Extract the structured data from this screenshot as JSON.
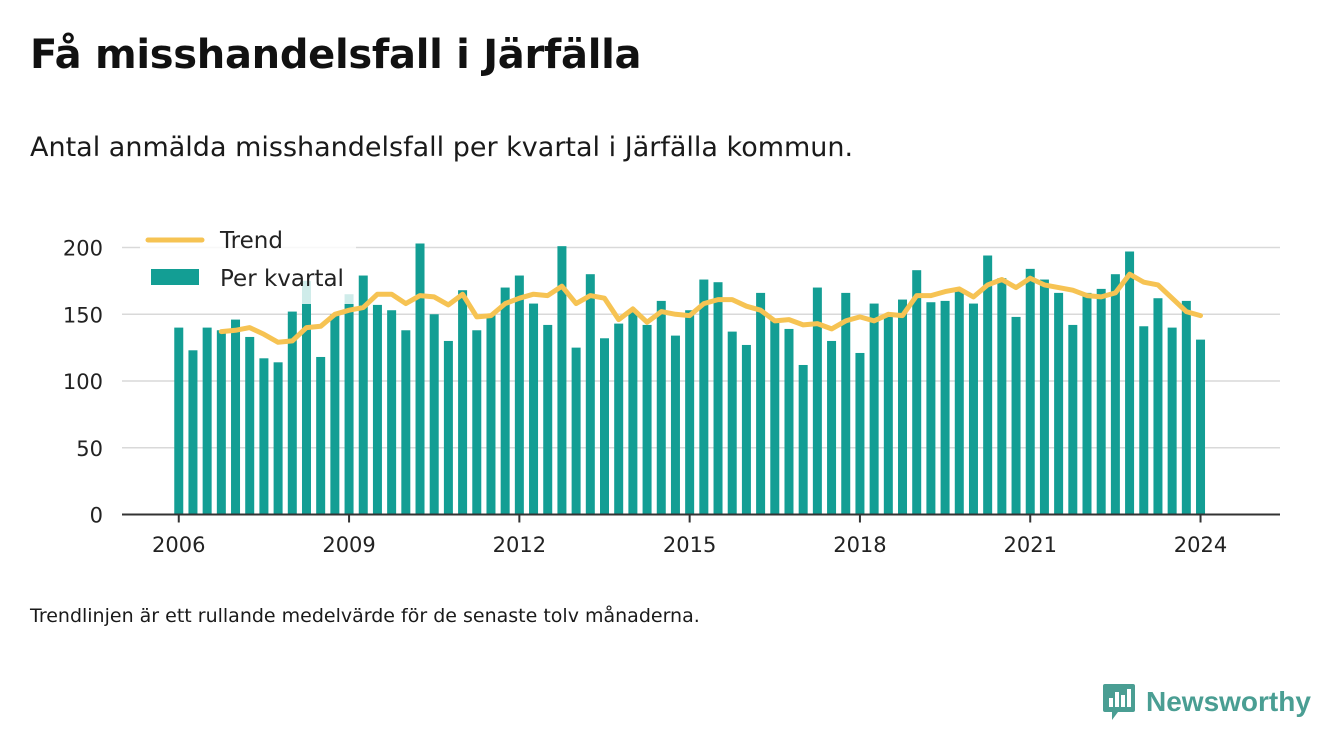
{
  "header": {
    "title": "Få misshandelsfall i Järfälla",
    "subtitle": "Antal anmälda misshandelsfall per kvartal i Järfälla kommun."
  },
  "footer": {
    "note": "Trendlinjen är ett rullande medelvärde för de senaste tolv månaderna.",
    "brand": "Newsworthy"
  },
  "colors": {
    "bar": "#139e94",
    "trend": "#f6c353",
    "grid": "#d9d9d9",
    "brand": "#4a9e93"
  },
  "chart_data": {
    "type": "bar",
    "ylim": [
      0,
      200
    ],
    "y_ticks": [
      0,
      50,
      100,
      150,
      200
    ],
    "x_ticks": [
      "2006",
      "2009",
      "2012",
      "2015",
      "2018",
      "2021",
      "2024"
    ],
    "x_tick_positions": [
      2006,
      2009,
      2012,
      2015,
      2018,
      2021,
      2024
    ],
    "xlim": [
      2005,
      2025.4
    ],
    "grid": true,
    "legend_position": "top-left",
    "series": [
      {
        "name": "Per kvartal",
        "type": "bar",
        "x": [
          2006.0,
          2006.25,
          2006.5,
          2006.75,
          2007.0,
          2007.25,
          2007.5,
          2007.75,
          2008.0,
          2008.25,
          2008.5,
          2008.75,
          2009.0,
          2009.25,
          2009.5,
          2009.75,
          2010.0,
          2010.25,
          2010.5,
          2010.75,
          2011.0,
          2011.25,
          2011.5,
          2011.75,
          2012.0,
          2012.25,
          2012.5,
          2012.75,
          2013.0,
          2013.25,
          2013.5,
          2013.75,
          2014.0,
          2014.25,
          2014.5,
          2014.75,
          2015.0,
          2015.25,
          2015.5,
          2015.75,
          2016.0,
          2016.25,
          2016.5,
          2016.75,
          2017.0,
          2017.25,
          2017.5,
          2017.75,
          2018.0,
          2018.25,
          2018.5,
          2018.75,
          2019.0,
          2019.25,
          2019.5,
          2019.75,
          2020.0,
          2020.25,
          2020.5,
          2020.75,
          2021.0,
          2021.25,
          2021.5,
          2021.75,
          2022.0,
          2022.25,
          2022.5,
          2022.75,
          2023.0,
          2023.25,
          2023.5,
          2023.75,
          2024.0
        ],
        "values": [
          140,
          123,
          140,
          138,
          146,
          133,
          117,
          114,
          152,
          175,
          118,
          150,
          165,
          179,
          157,
          153,
          138,
          203,
          150,
          130,
          168,
          138,
          150,
          170,
          179,
          158,
          142,
          201,
          125,
          180,
          132,
          143,
          153,
          142,
          160,
          134,
          153,
          176,
          174,
          137,
          127,
          166,
          146,
          139,
          112,
          170,
          130,
          166,
          121,
          158,
          148,
          161,
          183,
          159,
          160,
          168,
          158,
          194,
          177,
          148,
          184,
          176,
          166,
          142,
          166,
          169,
          180,
          197,
          141,
          162,
          140,
          160,
          131
        ]
      },
      {
        "name": "Trend",
        "type": "line",
        "x": [
          2006.75,
          2007.0,
          2007.25,
          2007.5,
          2007.75,
          2008.0,
          2008.25,
          2008.5,
          2008.75,
          2009.0,
          2009.25,
          2009.5,
          2009.75,
          2010.0,
          2010.25,
          2010.5,
          2010.75,
          2011.0,
          2011.25,
          2011.5,
          2011.75,
          2012.0,
          2012.25,
          2012.5,
          2012.75,
          2013.0,
          2013.25,
          2013.5,
          2013.75,
          2014.0,
          2014.25,
          2014.5,
          2014.75,
          2015.0,
          2015.25,
          2015.5,
          2015.75,
          2016.0,
          2016.25,
          2016.5,
          2016.75,
          2017.0,
          2017.25,
          2017.5,
          2017.75,
          2018.0,
          2018.25,
          2018.5,
          2018.75,
          2019.0,
          2019.25,
          2019.5,
          2019.75,
          2020.0,
          2020.25,
          2020.5,
          2020.75,
          2021.0,
          2021.25,
          2021.5,
          2021.75,
          2022.0,
          2022.25,
          2022.5,
          2022.75,
          2023.0,
          2023.25,
          2023.5,
          2023.75,
          2024.0
        ],
        "values": [
          137,
          138,
          140,
          135,
          129,
          130,
          140,
          141,
          150,
          153,
          155,
          165,
          165,
          158,
          164,
          163,
          157,
          165,
          148,
          149,
          158,
          162,
          165,
          164,
          171,
          158,
          164,
          162,
          146,
          154,
          144,
          152,
          150,
          149,
          158,
          161,
          161,
          156,
          153,
          145,
          146,
          142,
          143,
          139,
          145,
          148,
          145,
          150,
          149,
          164,
          164,
          167,
          169,
          163,
          172,
          176,
          170,
          177,
          172,
          170,
          168,
          164,
          163,
          166,
          180,
          174,
          172,
          162,
          152,
          149
        ]
      }
    ]
  }
}
